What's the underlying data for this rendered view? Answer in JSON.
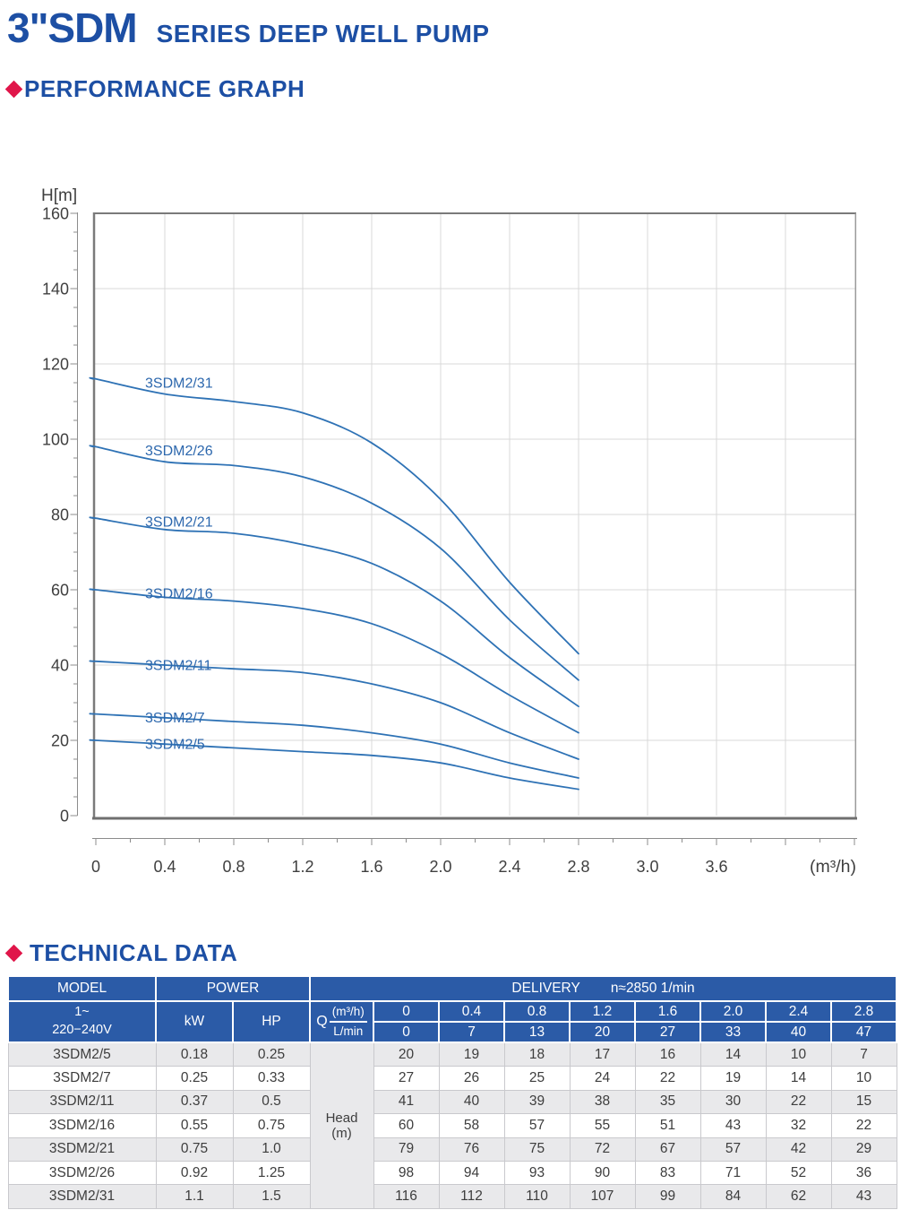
{
  "page": {
    "title_main": "3\"SDM",
    "title_sub": "SERIES DEEP WELL PUMP",
    "section1": "PERFORMANCE GRAPH",
    "section2": "TECHNICAL DATA"
  },
  "colors": {
    "accent_blue": "#1d4fa4",
    "header_blue": "#2b5ba7",
    "diamond_red": "#e0164a",
    "curve_blue": "#2e72b5"
  },
  "chart_data": {
    "type": "line",
    "title": "",
    "ylabel": "H[m]",
    "xlabel": "",
    "x_unit_label": "(m³/h)",
    "ylim": [
      0,
      160
    ],
    "y_major_step": 20,
    "y_minor_step": 5,
    "grid": true,
    "legend_position": "inline-curve-labels",
    "x_tick_labels": [
      "0",
      "0.4",
      "0.8",
      "1.2",
      "1.6",
      "2.0",
      "2.4",
      "2.8",
      "3.0",
      "3.6"
    ],
    "x": [
      0,
      0.4,
      0.8,
      1.2,
      1.6,
      2.0,
      2.4,
      2.8
    ],
    "series": [
      {
        "name": "3SDM2/31",
        "values": [
          116,
          112,
          110,
          107,
          99,
          84,
          62,
          43
        ]
      },
      {
        "name": "3SDM2/26",
        "values": [
          98,
          94,
          93,
          90,
          83,
          71,
          52,
          36
        ]
      },
      {
        "name": "3SDM2/21",
        "values": [
          79,
          76,
          75,
          72,
          67,
          57,
          42,
          29
        ]
      },
      {
        "name": "3SDM2/16",
        "values": [
          60,
          58,
          57,
          55,
          51,
          43,
          32,
          22
        ]
      },
      {
        "name": "3SDM2/11",
        "values": [
          41,
          40,
          39,
          38,
          35,
          30,
          22,
          15
        ]
      },
      {
        "name": "3SDM2/7",
        "values": [
          27,
          26,
          25,
          24,
          22,
          19,
          14,
          10
        ]
      },
      {
        "name": "3SDM2/5",
        "values": [
          20,
          19,
          18,
          17,
          16,
          14,
          10,
          7
        ]
      }
    ]
  },
  "table": {
    "header": {
      "model": "MODEL",
      "power": "POWER",
      "delivery": "DELIVERY",
      "delivery_note": "n≈2850 1/min",
      "voltage_line1": "1~",
      "voltage_line2": "220−240V",
      "kw": "kW",
      "hp": "HP",
      "q": "Q",
      "q_top": "(m³/h)",
      "q_bottom": "L/min",
      "flow_m3h": [
        "0",
        "0.4",
        "0.8",
        "1.2",
        "1.6",
        "2.0",
        "2.4",
        "2.8"
      ],
      "flow_lmin": [
        "0",
        "7",
        "13",
        "20",
        "27",
        "33",
        "40",
        "47"
      ]
    },
    "head_label_line1": "Head",
    "head_label_line2": "(m)",
    "rows": [
      {
        "model": "3SDM2/5",
        "kw": "0.18",
        "hp": "0.25",
        "head": [
          20,
          19,
          18,
          17,
          16,
          14,
          10,
          7
        ]
      },
      {
        "model": "3SDM2/7",
        "kw": "0.25",
        "hp": "0.33",
        "head": [
          27,
          26,
          25,
          24,
          22,
          19,
          14,
          10
        ]
      },
      {
        "model": "3SDM2/11",
        "kw": "0.37",
        "hp": "0.5",
        "head": [
          41,
          40,
          39,
          38,
          35,
          30,
          22,
          15
        ]
      },
      {
        "model": "3SDM2/16",
        "kw": "0.55",
        "hp": "0.75",
        "head": [
          60,
          58,
          57,
          55,
          51,
          43,
          32,
          22
        ]
      },
      {
        "model": "3SDM2/21",
        "kw": "0.75",
        "hp": "1.0",
        "head": [
          79,
          76,
          75,
          72,
          67,
          57,
          42,
          29
        ]
      },
      {
        "model": "3SDM2/26",
        "kw": "0.92",
        "hp": "1.25",
        "head": [
          98,
          94,
          93,
          90,
          83,
          71,
          52,
          36
        ]
      },
      {
        "model": "3SDM2/31",
        "kw": "1.1",
        "hp": "1.5",
        "head": [
          116,
          112,
          110,
          107,
          99,
          84,
          62,
          43
        ]
      }
    ]
  }
}
